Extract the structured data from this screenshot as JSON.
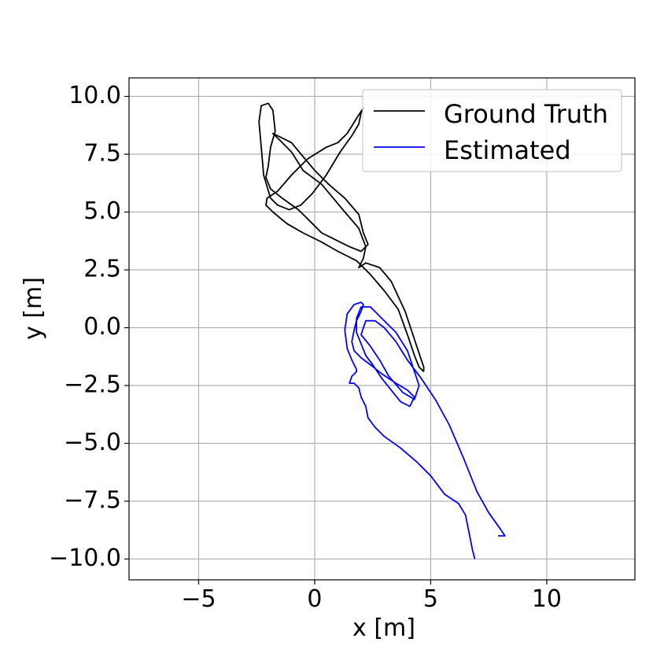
{
  "chart_data": {
    "type": "line",
    "xlabel": "x [m]",
    "ylabel": "y [m]",
    "xlim": [
      -8.0,
      13.8
    ],
    "ylim": [
      -10.9,
      10.8
    ],
    "xticks": [
      -5,
      0,
      5,
      10
    ],
    "xtick_labels": [
      "−5",
      "0",
      "5",
      "10"
    ],
    "yticks": [
      10,
      7.5,
      5,
      2.5,
      0,
      -2.5,
      -5,
      -7.5,
      -10
    ],
    "ytick_labels": [
      "10.0",
      "7.5",
      "5.0",
      "2.5",
      "0.0",
      "−2.5",
      "−5.0",
      "−7.5",
      "−10.0"
    ],
    "grid": true,
    "legend_position": "top-right",
    "series": [
      {
        "name": "Ground Truth",
        "color": "#000000",
        "x": [
          4.7,
          4.5,
          4.3,
          4.0,
          3.6,
          3.0,
          2.4,
          1.8,
          1.0,
          0.3,
          -0.5,
          -1.2,
          -1.8,
          -2.1,
          -2.05,
          -1.6,
          -1.0,
          -0.3,
          0.5,
          1.0,
          1.4,
          1.9,
          2.1,
          2.0,
          1.9,
          1.6,
          1.1,
          0.5,
          -0.1,
          -0.6,
          -1.1,
          -1.6,
          -1.9,
          -2.2,
          -2.3,
          -2.4,
          -2.3,
          -2.0,
          -1.8,
          -1.7,
          -1.9,
          -2.0,
          -2.1,
          -1.9,
          -1.4,
          -0.7,
          -0.2,
          0.3,
          0.9,
          1.5,
          2.0,
          2.3,
          2.1,
          1.9,
          1.3,
          0.6,
          0.0,
          -0.5,
          -1.0,
          -1.6,
          -1.8,
          -1.6,
          -1.0,
          -0.5,
          0.3,
          0.8,
          1.3,
          1.9,
          2.2,
          2.1,
          1.9,
          2.2,
          2.8,
          3.3,
          3.9,
          4.4,
          4.6,
          4.7,
          4.7
        ],
        "y": [
          -1.9,
          -1.7,
          -1.2,
          -0.3,
          0.8,
          1.6,
          2.3,
          2.9,
          3.3,
          3.7,
          4.1,
          4.5,
          5.0,
          5.3,
          5.6,
          5.9,
          6.6,
          7.3,
          7.8,
          8.0,
          8.4,
          9.2,
          9.5,
          9.3,
          8.8,
          8.3,
          7.6,
          6.6,
          5.8,
          5.3,
          5.1,
          5.3,
          5.6,
          6.6,
          7.8,
          8.9,
          9.6,
          9.7,
          9.4,
          8.5,
          7.8,
          7.0,
          6.5,
          6.0,
          5.6,
          5.1,
          4.6,
          4.1,
          3.8,
          3.5,
          3.3,
          3.6,
          4.1,
          4.9,
          5.6,
          6.2,
          6.8,
          7.4,
          8.0,
          8.3,
          8.4,
          8.2,
          7.6,
          6.8,
          6.2,
          5.6,
          5.0,
          4.3,
          3.5,
          3.0,
          2.6,
          2.8,
          2.6,
          2.0,
          0.7,
          -0.8,
          -1.4,
          -1.7,
          -1.9
        ]
      },
      {
        "name": "Estimated",
        "color": "#0000ff",
        "x": [
          6.9,
          6.8,
          6.7,
          6.5,
          6.2,
          5.6,
          5.0,
          4.4,
          3.7,
          3.0,
          2.6,
          2.3,
          2.2,
          2.0,
          1.9,
          1.7,
          1.5,
          1.6,
          1.8,
          1.8,
          1.6,
          1.4,
          1.3,
          1.4,
          1.7,
          2.0,
          2.1,
          2.0,
          1.8,
          1.7,
          1.6,
          1.7,
          2.0,
          2.4,
          2.9,
          3.5,
          4.0,
          4.3,
          4.1,
          3.7,
          3.3,
          2.9,
          2.5,
          2.2,
          2.0,
          1.8,
          1.8,
          2.0,
          2.4,
          2.7,
          3.0,
          3.5,
          4.0,
          4.5,
          4.3,
          3.8,
          3.2,
          2.8,
          2.4,
          2.0,
          2.2,
          2.6,
          3.0,
          3.5,
          4.0,
          4.6,
          5.2,
          5.8,
          6.4,
          7.0,
          7.5,
          8.0,
          8.2,
          7.9
        ],
        "y": [
          -10.0,
          -9.6,
          -9.1,
          -8.1,
          -7.6,
          -7.2,
          -6.4,
          -5.8,
          -5.2,
          -4.7,
          -4.3,
          -3.9,
          -3.4,
          -3.0,
          -2.6,
          -2.4,
          -2.4,
          -2.1,
          -1.9,
          -1.8,
          -1.4,
          -0.9,
          -0.1,
          0.6,
          1.0,
          1.1,
          1.0,
          0.7,
          0.3,
          -0.1,
          -0.6,
          -1.0,
          -1.3,
          -1.6,
          -2.0,
          -2.4,
          -2.7,
          -3.0,
          -3.4,
          -3.2,
          -2.7,
          -2.2,
          -1.6,
          -1.2,
          -0.7,
          -0.2,
          0.4,
          0.9,
          0.9,
          0.6,
          0.3,
          -0.2,
          -1.0,
          -2.5,
          -3.1,
          -2.8,
          -2.1,
          -1.4,
          -0.8,
          -0.3,
          0.3,
          0.3,
          0.0,
          -0.6,
          -1.4,
          -2.2,
          -3.1,
          -4.2,
          -5.6,
          -7.1,
          -8.0,
          -8.7,
          -9.0,
          -9.0
        ]
      }
    ]
  }
}
